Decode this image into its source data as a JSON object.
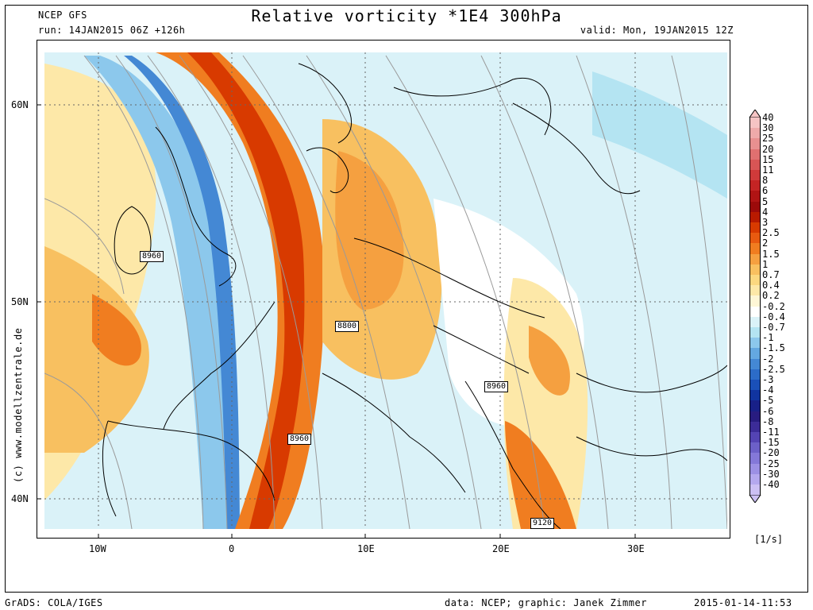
{
  "header": {
    "model": "NCEP GFS",
    "run": "run: 14JAN2015 06Z +126h",
    "title": "Relative vorticity *1E4 300hPa",
    "valid": "valid: Mon, 19JAN2015 12Z"
  },
  "legend": {
    "unit": "[1/s]",
    "levels": [
      {
        "label": "40",
        "color": "#f5c4c4"
      },
      {
        "label": "30",
        "color": "#eeaaaa"
      },
      {
        "label": "25",
        "color": "#e89090"
      },
      {
        "label": "20",
        "color": "#e07070"
      },
      {
        "label": "15",
        "color": "#d85555"
      },
      {
        "label": "11",
        "color": "#d03a3a"
      },
      {
        "label": "8",
        "color": "#c42424"
      },
      {
        "label": "6",
        "color": "#b01414"
      },
      {
        "label": "5",
        "color": "#9c0a0a"
      },
      {
        "label": "4",
        "color": "#b81a00"
      },
      {
        "label": "3",
        "color": "#d83a00"
      },
      {
        "label": "2.5",
        "color": "#e85a10"
      },
      {
        "label": "2",
        "color": "#f07d20"
      },
      {
        "label": "1.5",
        "color": "#f5a040"
      },
      {
        "label": "1",
        "color": "#f8c060"
      },
      {
        "label": "0.7",
        "color": "#fbd880"
      },
      {
        "label": "0.4",
        "color": "#fde8a8"
      },
      {
        "label": "0.2",
        "color": "#fef6d6"
      },
      {
        "label": "-0.2",
        "color": "#ffffff"
      },
      {
        "label": "-0.4",
        "color": "#daf2f8"
      },
      {
        "label": "-0.7",
        "color": "#b4e4f2"
      },
      {
        "label": "-1",
        "color": "#8cc8ec"
      },
      {
        "label": "-1.5",
        "color": "#64a8e0"
      },
      {
        "label": "-2",
        "color": "#4488d4"
      },
      {
        "label": "-2.5",
        "color": "#2c6cc8"
      },
      {
        "label": "-3",
        "color": "#1a50b8"
      },
      {
        "label": "-4",
        "color": "#1034a0"
      },
      {
        "label": "-5",
        "color": "#182088"
      },
      {
        "label": "-6",
        "color": "#281c80"
      },
      {
        "label": "-8",
        "color": "#3c2c98"
      },
      {
        "label": "-11",
        "color": "#5444b4"
      },
      {
        "label": "-15",
        "color": "#6c60c8"
      },
      {
        "label": "-20",
        "color": "#8478d8"
      },
      {
        "label": "-25",
        "color": "#9c90e4"
      },
      {
        "label": "-30",
        "color": "#b4a8ee"
      },
      {
        "label": "-40",
        "color": "#ccc0f4"
      }
    ]
  },
  "axes": {
    "lat_labels": [
      "60N",
      "50N",
      "40N"
    ],
    "lon_labels": [
      "10W",
      "0",
      "10E",
      "20E",
      "30E"
    ]
  },
  "contours": [
    "8960",
    "8800",
    "8960",
    "8960",
    "9120"
  ],
  "credit": "(c) www.modellzentrale.de",
  "footer": {
    "left": "GrADS: COLA/IGES",
    "center": "data: NCEP; graphic: Janek Zimmer",
    "right": "2015-01-14-11:53"
  }
}
